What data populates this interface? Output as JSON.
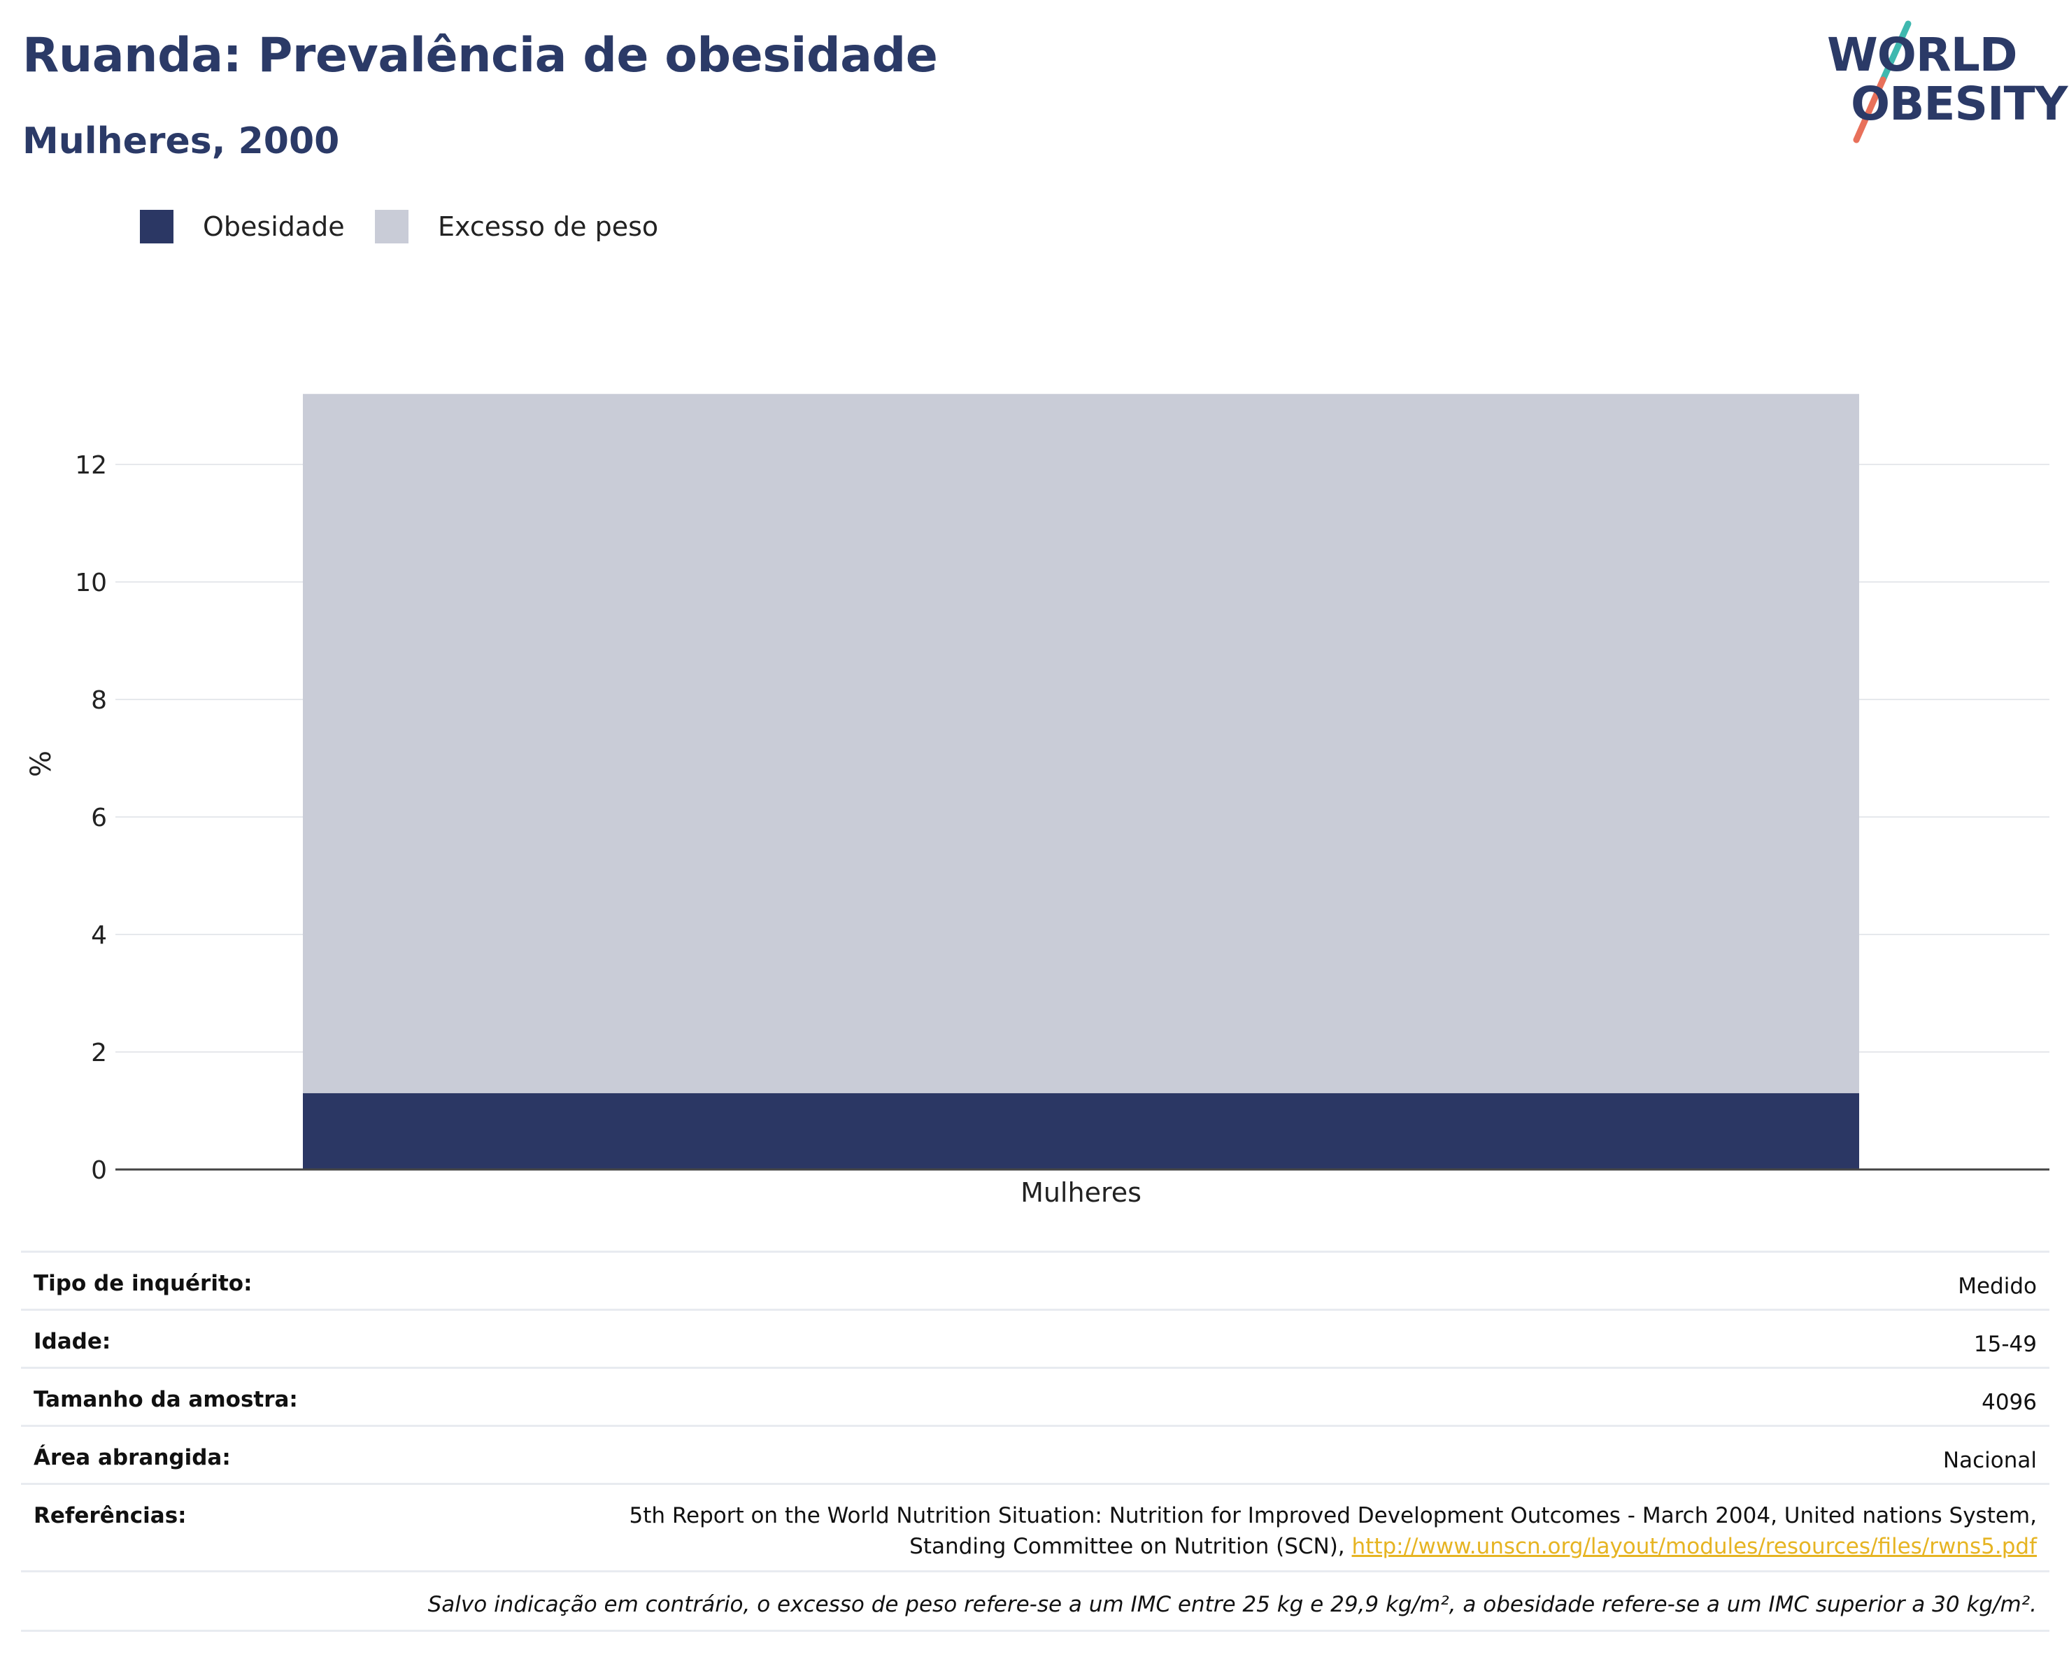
{
  "header": {
    "title": "Ruanda: Prevalência de obesidade",
    "subtitle": "Mulheres, 2000"
  },
  "logo": {
    "line1": "WORLD",
    "line2": "OBESITY",
    "slash_colors": [
      "#3fb8af",
      "#e8705a"
    ]
  },
  "colors": {
    "obesidade": "#2b3764",
    "excesso": "#c9ccd7",
    "title": "#2b3a67",
    "link": "#e6b422"
  },
  "chart_data": {
    "type": "bar",
    "stacked": true,
    "categories": [
      "Mulheres"
    ],
    "series": [
      {
        "name": "Obesidade",
        "values": [
          1.3
        ]
      },
      {
        "name": "Excesso de peso",
        "values": [
          11.9
        ]
      }
    ],
    "ylabel": "%",
    "xlabel": "",
    "ylim": [
      0,
      13.5
    ],
    "yticks": [
      0,
      2,
      4,
      6,
      8,
      10,
      12
    ],
    "grid": true,
    "legend_position": "top-left"
  },
  "info": {
    "rows": [
      {
        "label": "Tipo de inquérito:",
        "value": "Medido"
      },
      {
        "label": "Idade:",
        "value": "15-49"
      },
      {
        "label": "Tamanho da amostra:",
        "value": "4096"
      },
      {
        "label": "Área abrangida:",
        "value": "Nacional"
      }
    ],
    "references": {
      "label": "Referências:",
      "line1": "5th Report on the World Nutrition Situation: Nutrition for Improved Development Outcomes - March 2004, United nations System,",
      "line2_text": "Standing Committee on Nutrition (SCN), ",
      "link": "http://www.unscn.org/layout/modules/resources/files/rwns5.pdf"
    },
    "note": "Salvo indicação em contrário, o excesso de peso refere-se a um IMC entre 25 kg e 29,9 kg/m², a obesidade refere-se a um IMC superior a 30 kg/m²."
  }
}
